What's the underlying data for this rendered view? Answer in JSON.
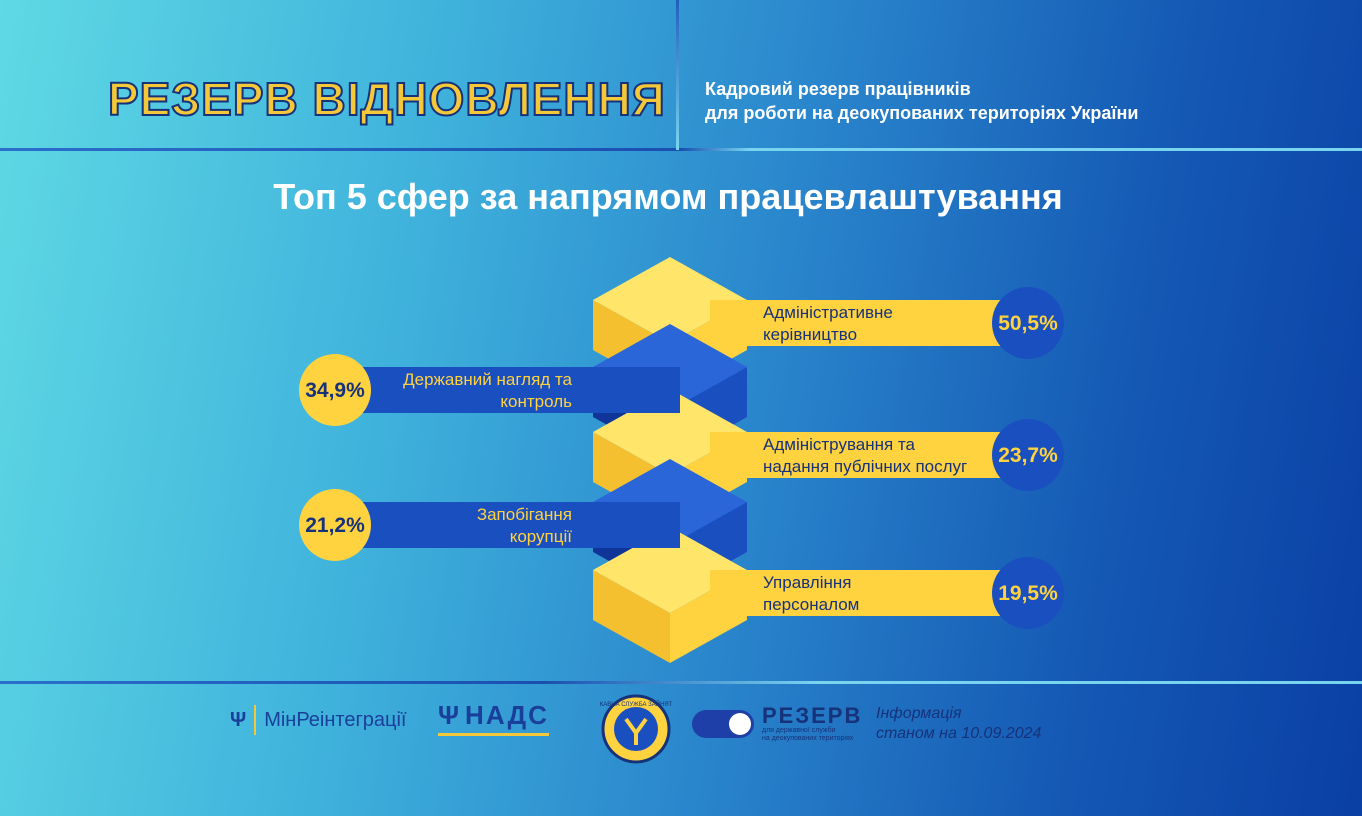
{
  "header": {
    "brand_title": "РЕЗЕРВ ВІДНОВЛЕННЯ",
    "subtitle_line1": "Кадровий резерв працівників",
    "subtitle_line2": "для роботи на деокупованих територіях України"
  },
  "chart_data": {
    "type": "bar",
    "title": "Топ 5 сфер за напрямом працевлаштування",
    "unit": "%",
    "items": [
      {
        "label_lines": [
          "Адміністративне",
          "керівництво"
        ],
        "value": 50.5,
        "value_label": "50,5%",
        "side": "right",
        "color": "yellow"
      },
      {
        "label_lines": [
          "Державний нагляд та",
          "контроль"
        ],
        "value": 34.9,
        "value_label": "34,9%",
        "side": "left",
        "color": "blue"
      },
      {
        "label_lines": [
          "Адміністрування та",
          "надання публічних послуг"
        ],
        "value": 23.7,
        "value_label": "23,7%",
        "side": "right",
        "color": "yellow"
      },
      {
        "label_lines": [
          "Запобігання",
          "корупції"
        ],
        "value": 21.2,
        "value_label": "21,2%",
        "side": "left",
        "color": "blue"
      },
      {
        "label_lines": [
          "Управління",
          "персоналом"
        ],
        "value": 19.5,
        "value_label": "19,5%",
        "side": "right",
        "color": "yellow"
      }
    ]
  },
  "colors": {
    "yellow": "#ffd23f",
    "yellow_light": "#ffe56a",
    "yellow_dark": "#f5c030",
    "blue": "#1a4fc0",
    "blue_dark": "#0e3597",
    "blue_light": "#2a66d8",
    "text_dark": "#16327a"
  },
  "footer": {
    "logo1": "МінРеінтеграції",
    "logo2": "НАДС",
    "logo3_ring_text": "ДЕРЖАВНА СЛУЖБА ЗАЙНЯТОСТІ",
    "logo4_main": "РЕЗЕРВ",
    "logo4_sub1": "для державної служби",
    "logo4_sub2": "на деокупованих територіях",
    "info_line1": "Інформація",
    "info_line2": "станом на 10.09.2024"
  }
}
